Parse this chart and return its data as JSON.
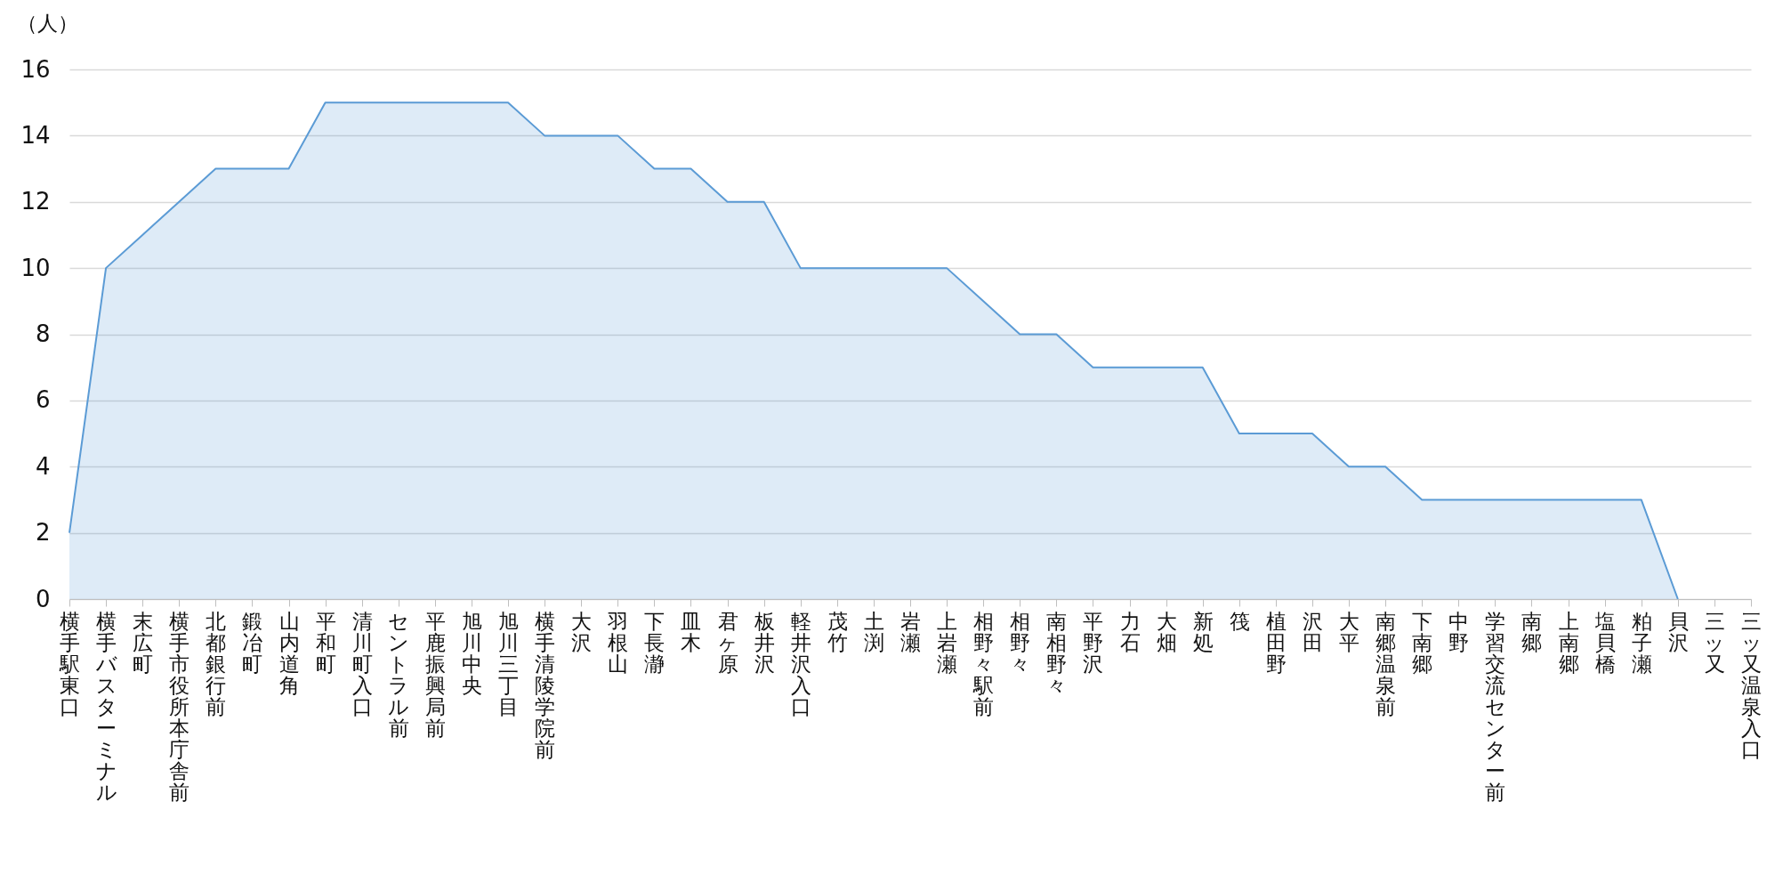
{
  "chart_data": {
    "type": "area",
    "ylabel": "（人）",
    "categories": [
      "横手駅東口",
      "横手バスターミナル",
      "末広町",
      "横手市役所本庁舎前",
      "北都銀行前",
      "鍛冶町",
      "山内道角",
      "平和町",
      "清川町入口",
      "セントラル前",
      "平鹿振興局前",
      "旭川中央",
      "旭川三丁目",
      "横手清陵学院前",
      "大沢",
      "羽根山",
      "下長瀞",
      "皿木",
      "君ヶ原",
      "板井沢",
      "軽井沢入口",
      "茂竹",
      "土渕",
      "岩瀬",
      "上岩瀬",
      "相野々駅前",
      "相野々",
      "南相野々",
      "平野沢",
      "力石",
      "大畑",
      "新処",
      "筏",
      "植田野",
      "沢田",
      "大平",
      "南郷温泉前",
      "下南郷",
      "中野",
      "学習交流センター前",
      "南郷",
      "上南郷",
      "塩貝橋",
      "粕子瀬",
      "貝沢",
      "三ッ又",
      "三ッ又温泉入口"
    ],
    "values": [
      2,
      10,
      11,
      12,
      13,
      13,
      13,
      15,
      15,
      15,
      15,
      15,
      15,
      14,
      14,
      14,
      13,
      13,
      12,
      12,
      10,
      10,
      10,
      10,
      10,
      9,
      8,
      8,
      7,
      7,
      7,
      7,
      5,
      5,
      5,
      4,
      4,
      3,
      3,
      3,
      3,
      3,
      3,
      3,
      0,
      null,
      null
    ],
    "color": "#5b9bd5",
    "ylim": [
      0,
      16
    ],
    "yticks": [
      0,
      2,
      4,
      6,
      8,
      10,
      12,
      14,
      16
    ],
    "grid": "y"
  }
}
